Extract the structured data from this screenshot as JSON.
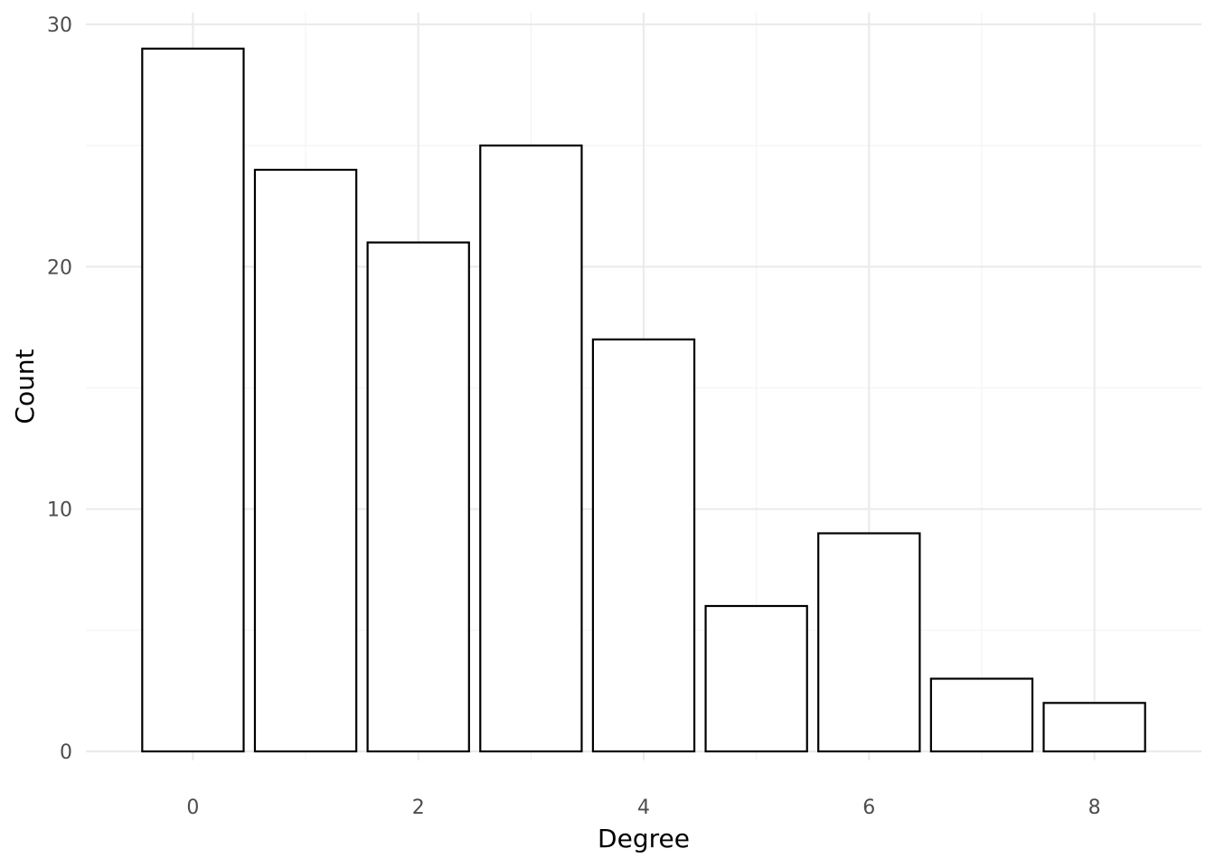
{
  "chart_data": {
    "type": "bar",
    "categories": [
      "0",
      "1",
      "2",
      "3",
      "4",
      "5",
      "6",
      "7",
      "8"
    ],
    "x": [
      0,
      1,
      2,
      3,
      4,
      5,
      6,
      7,
      8
    ],
    "values": [
      29,
      24,
      21,
      25,
      17,
      6,
      9,
      3,
      2
    ],
    "title": "",
    "xlabel": "Degree",
    "ylabel": "Count",
    "xlim": [
      -0.95,
      8.95
    ],
    "ylim": [
      0,
      30.2
    ],
    "x_ticks": [
      0,
      2,
      4,
      6,
      8
    ],
    "x_tick_labels": [
      "0",
      "2",
      "4",
      "6",
      "8"
    ],
    "y_ticks": [
      0,
      10,
      20,
      30
    ],
    "y_tick_labels": [
      "0",
      "10",
      "20",
      "30"
    ],
    "grid": true,
    "legend": "none",
    "colors": {
      "bar_fill": "#ffffff",
      "bar_outline": "#000000",
      "grid": "#ebebeb",
      "tick_text": "#4d4d4d",
      "axis_title": "#000000"
    }
  }
}
